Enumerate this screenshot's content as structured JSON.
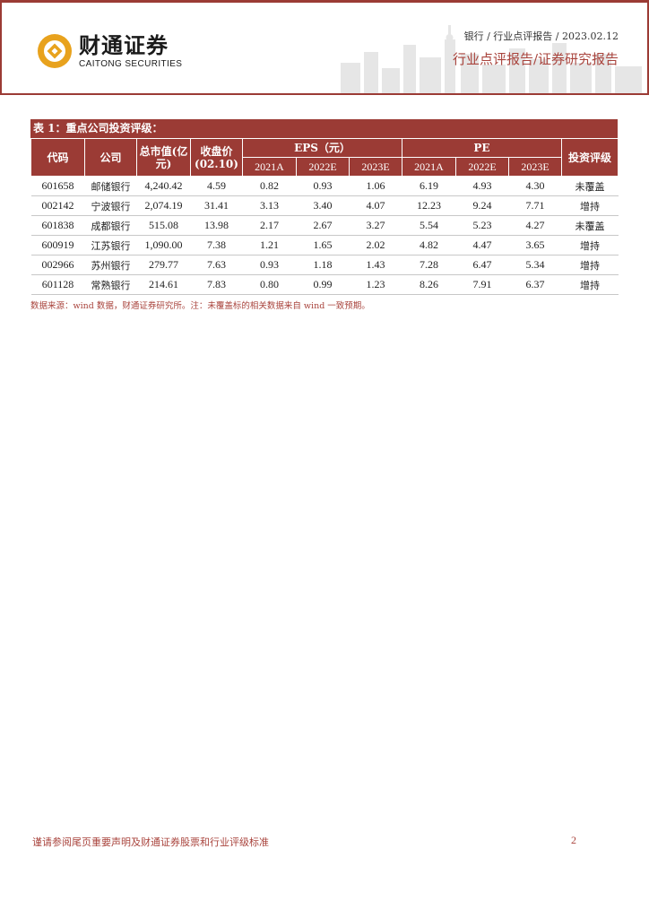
{
  "header": {
    "logo_cn": "财通证券",
    "logo_en": "CAITONG SECURITIES",
    "breadcrumb": "银行 / 行业点评报告 / 2023.02.12",
    "report_type": "行业点评报告/证券研究报告",
    "brand_color": "#9b3b35",
    "logo_color": "#e8a21d"
  },
  "table": {
    "caption": "表 1：重点公司投资评级：",
    "headers": {
      "code": "代码",
      "company": "公司",
      "market_cap": "总市值(亿元)",
      "close_price": "收盘价(02.10)",
      "eps": "EPS（元）",
      "pe": "PE",
      "rating": "投资评级",
      "years": [
        "2021A",
        "2022E",
        "2023E"
      ]
    },
    "rows": [
      {
        "code": "601658",
        "company": "邮储银行",
        "market_cap": "4,240.42",
        "price": "4.59",
        "eps": [
          "0.82",
          "0.93",
          "1.06"
        ],
        "pe": [
          "6.19",
          "4.93",
          "4.30"
        ],
        "rating": "未覆盖"
      },
      {
        "code": "002142",
        "company": "宁波银行",
        "market_cap": "2,074.19",
        "price": "31.41",
        "eps": [
          "3.13",
          "3.40",
          "4.07"
        ],
        "pe": [
          "12.23",
          "9.24",
          "7.71"
        ],
        "rating": "增持"
      },
      {
        "code": "601838",
        "company": "成都银行",
        "market_cap": "515.08",
        "price": "13.98",
        "eps": [
          "2.17",
          "2.67",
          "3.27"
        ],
        "pe": [
          "5.54",
          "5.23",
          "4.27"
        ],
        "rating": "未覆盖"
      },
      {
        "code": "600919",
        "company": "江苏银行",
        "market_cap": "1,090.00",
        "price": "7.38",
        "eps": [
          "1.21",
          "1.65",
          "2.02"
        ],
        "pe": [
          "4.82",
          "4.47",
          "3.65"
        ],
        "rating": "增持"
      },
      {
        "code": "002966",
        "company": "苏州银行",
        "market_cap": "279.77",
        "price": "7.63",
        "eps": [
          "0.93",
          "1.18",
          "1.43"
        ],
        "pe": [
          "7.28",
          "6.47",
          "5.34"
        ],
        "rating": "增持"
      },
      {
        "code": "601128",
        "company": "常熟银行",
        "market_cap": "214.61",
        "price": "7.83",
        "eps": [
          "0.80",
          "0.99",
          "1.23"
        ],
        "pe": [
          "8.26",
          "7.91",
          "6.37"
        ],
        "rating": "增持"
      }
    ],
    "source": "数据来源：wind 数据，财通证券研究所。注：未覆盖标的相关数据来自 wind 一致预期。"
  },
  "footer": {
    "disclaimer": "谨请参阅尾页重要声明及财通证券股票和行业评级标准",
    "page_number": "2"
  }
}
